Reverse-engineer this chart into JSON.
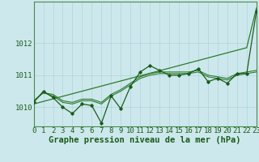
{
  "xlabel": "Graphe pression niveau de la mer (hPa)",
  "ylabel": "",
  "background_color": "#cde8ec",
  "grid_color": "#aed4d8",
  "line_color_dark": "#1a5c1a",
  "line_color_mid": "#2d7a2d",
  "x_ticks": [
    0,
    1,
    2,
    3,
    4,
    5,
    6,
    7,
    8,
    9,
    10,
    11,
    12,
    13,
    14,
    15,
    16,
    17,
    18,
    19,
    20,
    21,
    22,
    23
  ],
  "ylim": [
    1009.4,
    1013.3
  ],
  "xlim": [
    0,
    23
  ],
  "series_raw": [
    1010.15,
    1010.5,
    1010.3,
    1010.0,
    1009.8,
    1010.1,
    1010.05,
    1009.5,
    1010.35,
    1009.95,
    1010.65,
    1011.1,
    1011.3,
    1011.15,
    1011.0,
    1011.0,
    1011.05,
    1011.2,
    1010.8,
    1010.9,
    1010.75,
    1011.05,
    1011.05,
    1013.0
  ],
  "series_smooth1": [
    1010.2,
    1010.45,
    1010.35,
    1010.15,
    1010.1,
    1010.2,
    1010.2,
    1010.1,
    1010.35,
    1010.5,
    1010.7,
    1010.9,
    1011.0,
    1011.05,
    1011.05,
    1011.05,
    1011.05,
    1011.1,
    1010.95,
    1010.9,
    1010.85,
    1011.0,
    1011.05,
    1011.1
  ],
  "series_smooth2": [
    1010.2,
    1010.45,
    1010.4,
    1010.2,
    1010.15,
    1010.25,
    1010.25,
    1010.15,
    1010.4,
    1010.55,
    1010.75,
    1010.95,
    1011.05,
    1011.1,
    1011.1,
    1011.1,
    1011.1,
    1011.15,
    1011.0,
    1010.95,
    1010.9,
    1011.05,
    1011.1,
    1011.15
  ],
  "series_trend": [
    1010.1,
    1010.18,
    1010.26,
    1010.34,
    1010.42,
    1010.5,
    1010.58,
    1010.66,
    1010.74,
    1010.82,
    1010.9,
    1010.98,
    1011.06,
    1011.14,
    1011.22,
    1011.3,
    1011.38,
    1011.46,
    1011.54,
    1011.62,
    1011.7,
    1011.78,
    1011.86,
    1013.1
  ],
  "yticks": [
    1010,
    1011,
    1012
  ],
  "tick_fontsize": 6.5,
  "xlabel_fontsize": 7.5
}
